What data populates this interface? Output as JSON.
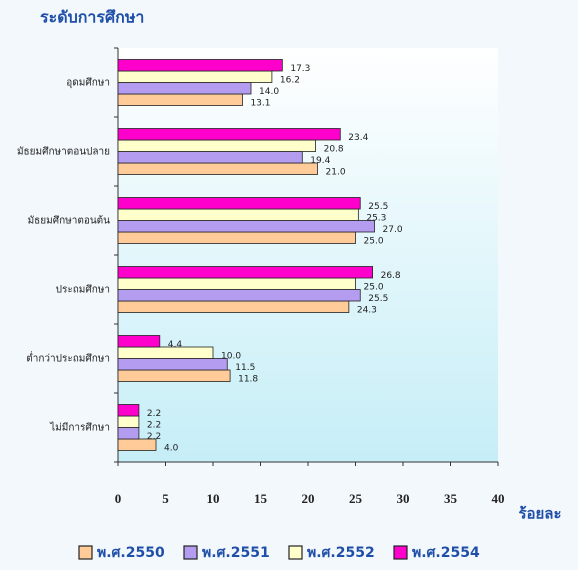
{
  "chart_data": {
    "type": "hbar",
    "title": "ระดับการศึกษา",
    "x_label": "ร้อยละ",
    "categories": [
      "อุดมศึกษา",
      "มัธยมศึกษาตอนปลาย",
      "มัธยมศึกษาตอนต้น",
      "ประถมศึกษา",
      "ต่ำกว่าประถมศึกษา",
      "ไม่มีการศึกษา"
    ],
    "series": [
      {
        "name": "พ.ศ.2550",
        "color": "#ffcc99",
        "values": [
          13.1,
          21.0,
          25.0,
          24.3,
          11.8,
          4.0
        ],
        "value_labels": [
          "13.1",
          "21.0",
          "25.0",
          "24.3",
          "11.8",
          "4.0"
        ]
      },
      {
        "name": "พ.ศ.2551",
        "color": "#b49cf0",
        "values": [
          14.0,
          19.4,
          27.0,
          25.5,
          11.5,
          2.2
        ],
        "value_labels": [
          "14.0",
          "19.4",
          "27.0",
          "25.5",
          "11.5",
          "2.2"
        ]
      },
      {
        "name": "พ.ศ.2552",
        "color": "#ffffcc",
        "values": [
          16.2,
          20.8,
          25.3,
          25.0,
          10.0,
          2.2
        ],
        "value_labels": [
          "16.2",
          "20.8",
          "25.3",
          "25.0",
          "10.0",
          "2.2"
        ]
      },
      {
        "name": "พ.ศ.2554",
        "color": "#ff00cc",
        "values": [
          17.3,
          23.4,
          25.5,
          26.8,
          4.4,
          2.2
        ],
        "value_labels": [
          "17.3",
          "23.4",
          "25.5",
          "26.8",
          "4.4",
          "2.2"
        ]
      }
    ],
    "xlim": [
      0,
      40
    ],
    "xticks": [
      0,
      5,
      10,
      15,
      20,
      25,
      30,
      35,
      40
    ],
    "legend": "bottom"
  }
}
